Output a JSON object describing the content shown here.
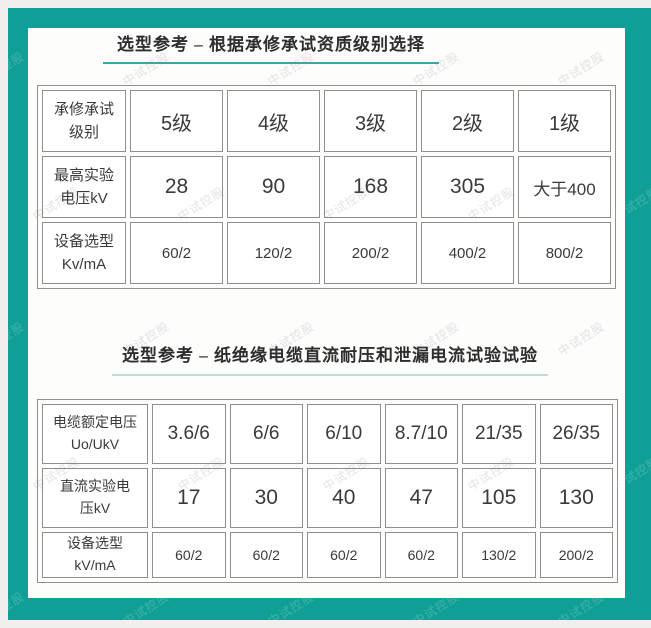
{
  "watermark": {
    "text": "中试控股"
  },
  "colors": {
    "teal_frame": "#109f96",
    "underline_1": "#3aa8a1",
    "underline_2": "#bbdcd8",
    "table_border": "#8f8f8d",
    "text": "#3a3a3a",
    "page_background": "#f0efec"
  },
  "section1": {
    "title": "选型参考 – 根据承修承试资质级别选择",
    "table": {
      "rows": [
        {
          "header_lines": [
            "承修承试",
            "级别"
          ],
          "cells": [
            "5级",
            "4级",
            "3级",
            "2级",
            "1级"
          ]
        },
        {
          "header_lines": [
            "最高实验",
            "电压kV"
          ],
          "cells": [
            "28",
            "90",
            "168",
            "305",
            "大于400"
          ]
        },
        {
          "header_lines": [
            "设备选型",
            "Kv/mA"
          ],
          "cells": [
            "60/2",
            "120/2",
            "200/2",
            "400/2",
            "800/2"
          ]
        }
      ]
    }
  },
  "section2": {
    "title": "选型参考 – 纸绝缘电缆直流耐压和泄漏电流试验试验",
    "table": {
      "rows": [
        {
          "header_lines": [
            "电缆额定电压",
            "Uo/UkV"
          ],
          "cells": [
            "3.6/6",
            "6/6",
            "6/10",
            "8.7/10",
            "21/35",
            "26/35"
          ]
        },
        {
          "header_lines": [
            "直流实验电",
            "压kV"
          ],
          "cells": [
            "17",
            "30",
            "40",
            "47",
            "105",
            "130"
          ]
        },
        {
          "header_lines": [
            "设备选型",
            "kV/mA"
          ],
          "cells": [
            "60/2",
            "60/2",
            "60/2",
            "60/2",
            "130/2",
            "200/2"
          ]
        }
      ]
    }
  }
}
